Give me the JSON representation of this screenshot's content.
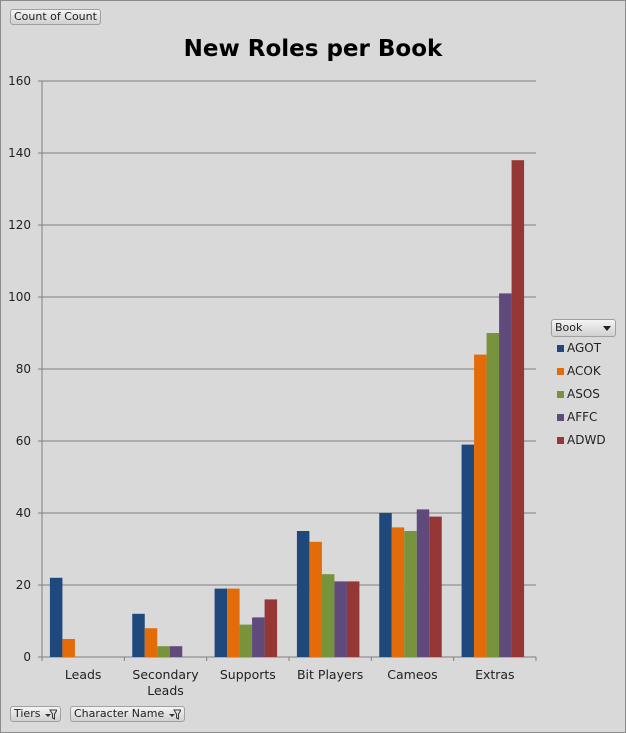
{
  "top_button": {
    "label": "Count of Count"
  },
  "bottom_buttons": [
    {
      "label": "Tiers"
    },
    {
      "label": "Character Name"
    }
  ],
  "legend": {
    "title": "Book"
  },
  "chart_data": {
    "type": "bar",
    "title": "New Roles per Book",
    "categories": [
      "Leads",
      "Secondary\nLeads",
      "Supports",
      "Bit Players",
      "Cameos",
      "Extras"
    ],
    "series": [
      {
        "name": "AGOT",
        "color": "#1f497d",
        "values": [
          22,
          12,
          19,
          35,
          40,
          59
        ]
      },
      {
        "name": "ACOK",
        "color": "#e36c09",
        "values": [
          5,
          8,
          19,
          32,
          36,
          84
        ]
      },
      {
        "name": "ASOS",
        "color": "#77933c",
        "values": [
          0,
          3,
          9,
          23,
          35,
          90
        ]
      },
      {
        "name": "AFFC",
        "color": "#604a7b",
        "values": [
          0,
          3,
          11,
          21,
          41,
          101
        ]
      },
      {
        "name": "ADWD",
        "color": "#953735",
        "values": [
          0,
          0,
          16,
          21,
          39,
          138
        ]
      }
    ],
    "ylim": [
      0,
      160
    ],
    "yticks": [
      0,
      20,
      40,
      60,
      80,
      100,
      120,
      140,
      160
    ],
    "grid": true,
    "legend_position": "right"
  }
}
